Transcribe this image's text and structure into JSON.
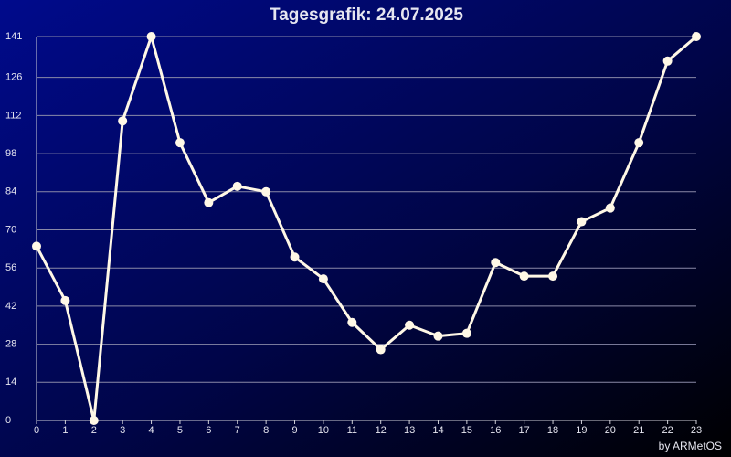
{
  "chart_data": {
    "type": "line",
    "title": "Tagesgrafik: 24.07.2025",
    "x": [
      0,
      1,
      2,
      3,
      4,
      5,
      6,
      7,
      8,
      9,
      10,
      11,
      12,
      13,
      14,
      15,
      16,
      17,
      18,
      19,
      20,
      21,
      22,
      23
    ],
    "values": [
      64,
      44,
      0,
      110,
      141,
      102,
      80,
      86,
      84,
      60,
      52,
      36,
      26,
      35,
      31,
      32,
      58,
      53,
      53,
      73,
      78,
      102,
      132,
      141
    ],
    "color": "#fff8e6",
    "xlim": [
      0,
      23
    ],
    "xticks": [
      0,
      1,
      2,
      3,
      4,
      5,
      6,
      7,
      8,
      9,
      10,
      11,
      12,
      13,
      14,
      15,
      16,
      17,
      18,
      19,
      20,
      21,
      22,
      23
    ],
    "ylim": [
      0,
      141
    ],
    "yticks": [
      0,
      14,
      28,
      42,
      56,
      70,
      84,
      98,
      112,
      126,
      141
    ],
    "grid": true,
    "credit": "by ARMetOS"
  }
}
